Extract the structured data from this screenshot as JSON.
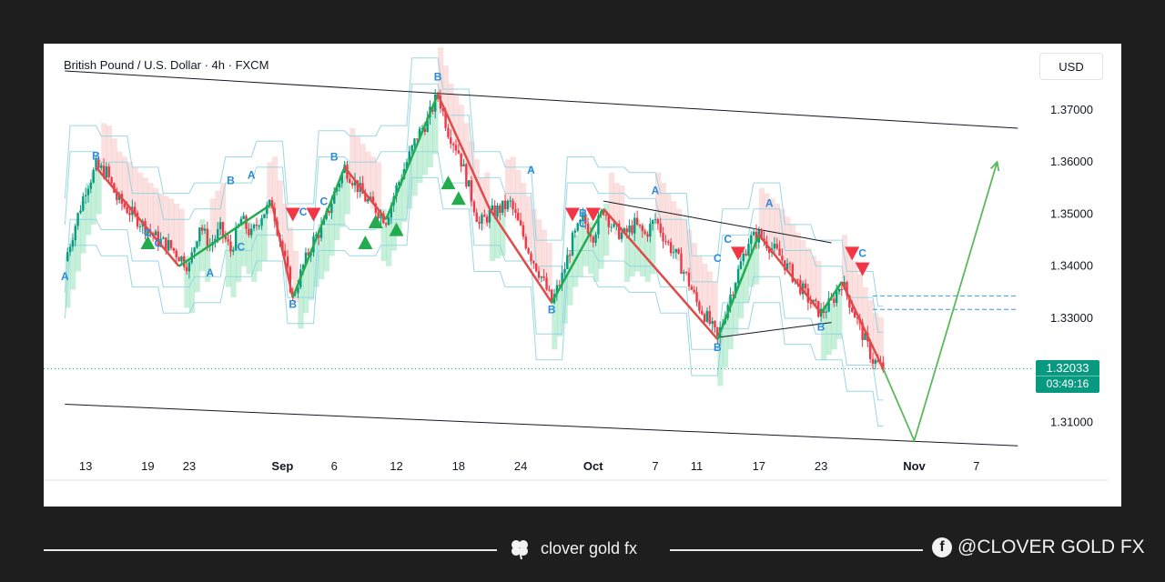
{
  "chart_data": {
    "type": "candlestick",
    "title": "British Pound / U.S. Dollar · 4h · FXCM",
    "currency": "USD",
    "ylim": [
      1.3045,
      1.3775
    ],
    "y_ticks": [
      1.37,
      1.36,
      1.35,
      1.34,
      1.33,
      1.31
    ],
    "y_tick_labels": [
      "1.37000",
      "1.36000",
      "1.35000",
      "1.34000",
      "1.33000",
      "1.31000"
    ],
    "x_ticks": [
      {
        "label": "13",
        "day": 13,
        "bold": false
      },
      {
        "label": "19",
        "day": 19,
        "bold": false
      },
      {
        "label": "23",
        "day": 23,
        "bold": false
      },
      {
        "label": "Sep",
        "day": 32,
        "bold": true
      },
      {
        "label": "6",
        "day": 37,
        "bold": false
      },
      {
        "label": "12",
        "day": 43,
        "bold": false
      },
      {
        "label": "18",
        "day": 49,
        "bold": false
      },
      {
        "label": "24",
        "day": 55,
        "bold": false
      },
      {
        "label": "Oct",
        "day": 62,
        "bold": true
      },
      {
        "label": "7",
        "day": 68,
        "bold": false
      },
      {
        "label": "11",
        "day": 72,
        "bold": false
      },
      {
        "label": "17",
        "day": 78,
        "bold": false
      },
      {
        "label": "23",
        "day": 84,
        "bold": false
      },
      {
        "label": "Nov",
        "day": 93,
        "bold": true
      },
      {
        "label": "7",
        "day": 99,
        "bold": false
      }
    ],
    "last_price": 1.32033,
    "last_price_label": "1.32033",
    "countdown": "03:49:16",
    "price_path": [
      [
        11,
        1.341
      ],
      [
        12,
        1.348
      ],
      [
        13,
        1.355
      ],
      [
        14,
        1.359
      ],
      [
        15,
        1.358
      ],
      [
        16,
        1.353
      ],
      [
        17,
        1.351
      ],
      [
        18,
        1.349
      ],
      [
        19,
        1.347
      ],
      [
        20,
        1.345
      ],
      [
        21,
        1.344
      ],
      [
        22,
        1.342
      ],
      [
        23,
        1.34
      ],
      [
        24,
        1.348
      ],
      [
        25,
        1.344
      ],
      [
        26,
        1.347
      ],
      [
        27,
        1.343
      ],
      [
        28,
        1.349
      ],
      [
        29,
        1.346
      ],
      [
        30,
        1.35
      ],
      [
        31,
        1.352
      ],
      [
        32,
        1.343
      ],
      [
        33,
        1.334
      ],
      [
        34,
        1.34
      ],
      [
        35,
        1.345
      ],
      [
        36,
        1.348
      ],
      [
        37,
        1.354
      ],
      [
        38,
        1.359
      ],
      [
        39,
        1.356
      ],
      [
        40,
        1.353
      ],
      [
        41,
        1.351
      ],
      [
        42,
        1.349
      ],
      [
        43,
        1.355
      ],
      [
        44,
        1.36
      ],
      [
        45,
        1.365
      ],
      [
        46,
        1.368
      ],
      [
        47,
        1.373
      ],
      [
        48,
        1.366
      ],
      [
        49,
        1.362
      ],
      [
        50,
        1.355
      ],
      [
        51,
        1.348
      ],
      [
        52,
        1.35
      ],
      [
        53,
        1.351
      ],
      [
        54,
        1.352
      ],
      [
        55,
        1.347
      ],
      [
        56,
        1.342
      ],
      [
        57,
        1.338
      ],
      [
        58,
        1.333
      ],
      [
        59,
        1.338
      ],
      [
        60,
        1.345
      ],
      [
        61,
        1.349
      ],
      [
        62,
        1.346
      ],
      [
        63,
        1.351
      ],
      [
        64,
        1.347
      ],
      [
        65,
        1.346
      ],
      [
        66,
        1.348
      ],
      [
        67,
        1.346
      ],
      [
        68,
        1.349
      ],
      [
        69,
        1.345
      ],
      [
        70,
        1.342
      ],
      [
        71,
        1.338
      ],
      [
        72,
        1.333
      ],
      [
        73,
        1.33
      ],
      [
        74,
        1.326
      ],
      [
        75,
        1.333
      ],
      [
        76,
        1.339
      ],
      [
        77,
        1.345
      ],
      [
        78,
        1.346
      ],
      [
        79,
        1.344
      ],
      [
        80,
        1.342
      ],
      [
        81,
        1.339
      ],
      [
        82,
        1.336
      ],
      [
        83,
        1.333
      ],
      [
        84,
        1.331
      ],
      [
        85,
        1.333
      ],
      [
        86,
        1.337
      ],
      [
        87,
        1.332
      ],
      [
        88,
        1.327
      ],
      [
        89,
        1.322
      ],
      [
        90,
        1.3203
      ]
    ],
    "zigzag": [
      {
        "from": [
          14,
          1.359
        ],
        "to": [
          22,
          1.34
        ],
        "color": "red"
      },
      {
        "from": [
          22,
          1.34
        ],
        "to": [
          31,
          1.352
        ],
        "color": "green"
      },
      {
        "from": [
          31,
          1.352
        ],
        "to": [
          33,
          1.334
        ],
        "color": "red"
      },
      {
        "from": [
          33,
          1.334
        ],
        "to": [
          38,
          1.359
        ],
        "color": "green"
      },
      {
        "from": [
          38,
          1.359
        ],
        "to": [
          42,
          1.349
        ],
        "color": "red"
      },
      {
        "from": [
          42,
          1.349
        ],
        "to": [
          47,
          1.373
        ],
        "color": "green"
      },
      {
        "from": [
          47,
          1.373
        ],
        "to": [
          52,
          1.351
        ],
        "color": "red"
      },
      {
        "from": [
          52,
          1.351
        ],
        "to": [
          58,
          1.333
        ],
        "color": "red"
      },
      {
        "from": [
          58,
          1.333
        ],
        "to": [
          63,
          1.351
        ],
        "color": "green"
      },
      {
        "from": [
          63,
          1.351
        ],
        "to": [
          74,
          1.326
        ],
        "color": "red"
      },
      {
        "from": [
          74,
          1.326
        ],
        "to": [
          78,
          1.346
        ],
        "color": "green"
      },
      {
        "from": [
          78,
          1.346
        ],
        "to": [
          84,
          1.331
        ],
        "color": "red"
      },
      {
        "from": [
          84,
          1.331
        ],
        "to": [
          86,
          1.337
        ],
        "color": "green"
      },
      {
        "from": [
          86,
          1.337
        ],
        "to": [
          90,
          1.3203
        ],
        "color": "red"
      }
    ],
    "channel_lines": [
      {
        "from": [
          11,
          1.3775
        ],
        "to": [
          103,
          1.3665
        ]
      },
      {
        "from": [
          11,
          1.3135
        ],
        "to": [
          103,
          1.3055
        ]
      },
      {
        "from": [
          63,
          1.3525
        ],
        "to": [
          85,
          1.3445
        ]
      },
      {
        "from": [
          74,
          1.3263
        ],
        "to": [
          85,
          1.3292
        ]
      }
    ],
    "projection": [
      [
        90,
        1.3203
      ],
      [
        93,
        1.3065
      ],
      [
        101,
        1.36
      ]
    ],
    "reference_levels": [
      1.3343,
      1.3317
    ],
    "wave_labels": [
      {
        "text": "B",
        "at": [
          14,
          1.3605
        ]
      },
      {
        "text": "C",
        "at": [
          19,
          1.3457
        ]
      },
      {
        "text": "C",
        "at": [
          20,
          1.3437
        ]
      },
      {
        "text": "A",
        "at": [
          11,
          1.3373
        ]
      },
      {
        "text": "B",
        "at": [
          27,
          1.3558
        ]
      },
      {
        "text": "A",
        "at": [
          29,
          1.3568
        ]
      },
      {
        "text": "C",
        "at": [
          28,
          1.343
        ]
      },
      {
        "text": "A",
        "at": [
          25,
          1.338
        ]
      },
      {
        "text": "B",
        "at": [
          33,
          1.332
        ]
      },
      {
        "text": "C",
        "at": [
          34,
          1.3497
        ]
      },
      {
        "text": "C",
        "at": [
          36,
          1.3517
        ]
      },
      {
        "text": "B",
        "at": [
          37,
          1.3603
        ]
      },
      {
        "text": "B",
        "at": [
          47,
          1.3757
        ]
      },
      {
        "text": "A",
        "at": [
          56,
          1.3578
        ]
      },
      {
        "text": "C",
        "at": [
          61,
          1.3475
        ]
      },
      {
        "text": "B",
        "at": [
          61,
          1.3495
        ]
      },
      {
        "text": "B",
        "at": [
          58,
          1.331
        ]
      },
      {
        "text": "A",
        "at": [
          68,
          1.3538
        ]
      },
      {
        "text": "C",
        "at": [
          74,
          1.3408
        ]
      },
      {
        "text": "C",
        "at": [
          75,
          1.3445
        ]
      },
      {
        "text": "A",
        "at": [
          79,
          1.3514
        ]
      },
      {
        "text": "B",
        "at": [
          74,
          1.3237
        ]
      },
      {
        "text": "B",
        "at": [
          84,
          1.3276
        ]
      },
      {
        "text": "C",
        "at": [
          88,
          1.3418
        ]
      }
    ],
    "signals": [
      {
        "type": "buy",
        "at": [
          19,
          1.3445
        ]
      },
      {
        "type": "sell",
        "at": [
          33,
          1.35
        ]
      },
      {
        "type": "sell",
        "at": [
          35,
          1.35
        ]
      },
      {
        "type": "buy",
        "at": [
          40,
          1.3445
        ]
      },
      {
        "type": "buy",
        "at": [
          41,
          1.3485
        ]
      },
      {
        "type": "buy",
        "at": [
          43,
          1.347
        ]
      },
      {
        "type": "buy",
        "at": [
          48,
          1.356
        ]
      },
      {
        "type": "buy",
        "at": [
          49,
          1.353
        ]
      },
      {
        "type": "sell",
        "at": [
          60,
          1.35
        ]
      },
      {
        "type": "sell",
        "at": [
          62,
          1.35
        ]
      },
      {
        "type": "sell",
        "at": [
          76,
          1.3425
        ]
      },
      {
        "type": "sell",
        "at": [
          87,
          1.3425
        ]
      },
      {
        "type": "sell",
        "at": [
          88,
          1.3395
        ]
      }
    ],
    "colors": {
      "up": "#089981",
      "down": "#f23645",
      "zigzag_green": "#22ab4f",
      "zigzag_red": "#e04a4a",
      "wave_label": "#2a8ad8",
      "bull_zone": "#5fd497",
      "bear_zone": "#f4a6a6",
      "band_line": "#8fd3e0",
      "projection": "#5cb85c"
    }
  },
  "footer": {
    "brand": "clover gold fx",
    "social": "@CLOVER GOLD FX",
    "brand_icon": "clover-icon",
    "social_icon": "facebook-icon"
  }
}
